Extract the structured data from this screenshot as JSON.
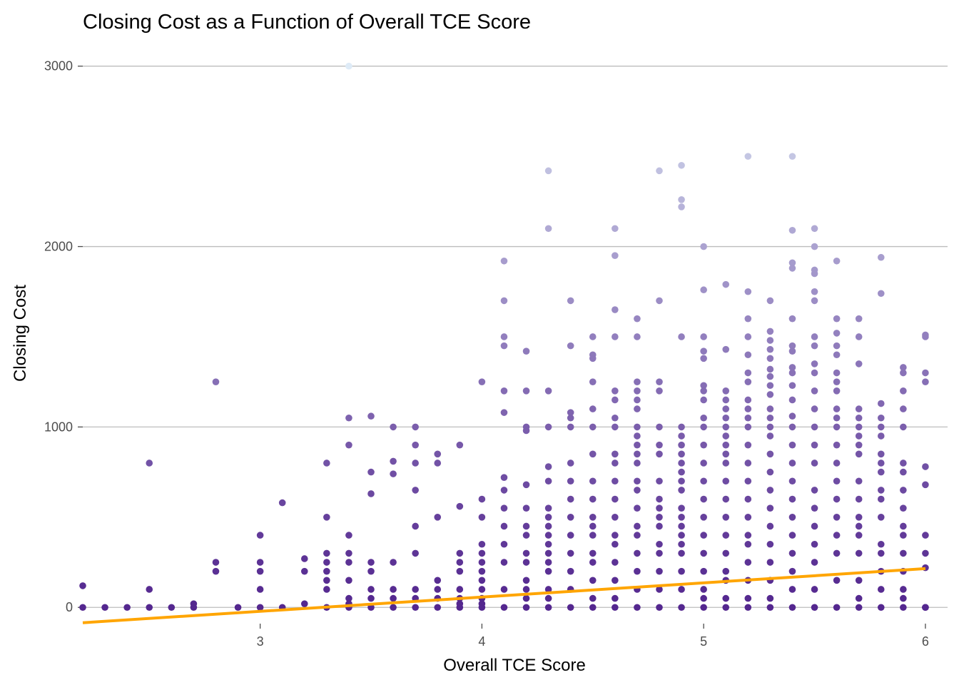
{
  "chart_data": {
    "type": "scatter",
    "title": "Closing Cost as a Function of Overall TCE Score",
    "xlabel": "Overall TCE Score",
    "ylabel": "Closing Cost",
    "xlim": [
      2.2,
      6.1
    ],
    "ylim": [
      -90,
      3070
    ],
    "x_ticks": [
      3,
      4,
      5,
      6
    ],
    "x_tick_labels": [
      "3",
      "4",
      "5",
      "6"
    ],
    "y_ticks": [
      0,
      1000,
      2000,
      3000
    ],
    "y_tick_labels": [
      "0",
      "1000",
      "2000",
      "3000"
    ],
    "grid": "horizontal",
    "point_color_scale": {
      "low": "#54278f",
      "high": "#deebf7",
      "min_value": 0,
      "max_value": 3000
    },
    "trend_line": {
      "color": "#ffa500",
      "x": [
        2.2,
        6.0
      ],
      "y": [
        -85,
        215
      ]
    },
    "points": {
      "x": [
        2.2,
        2.2,
        2.3,
        2.4,
        2.5,
        2.5,
        2.5,
        2.6,
        2.7,
        2.7,
        2.8,
        2.8,
        2.8,
        2.9,
        3.0,
        3.0,
        3.0,
        3.0,
        3.0,
        3.1,
        3.1,
        3.2,
        3.2,
        3.2,
        3.3,
        3.3,
        3.3,
        3.3,
        3.3,
        3.3,
        3.3,
        3.3,
        3.4,
        3.4,
        3.4,
        3.4,
        3.4,
        3.4,
        3.4,
        3.4,
        3.4,
        3.4,
        3.5,
        3.5,
        3.5,
        3.5,
        3.5,
        3.5,
        3.5,
        3.5,
        3.6,
        3.6,
        3.6,
        3.6,
        3.6,
        3.6,
        3.6,
        3.7,
        3.7,
        3.7,
        3.7,
        3.7,
        3.7,
        3.7,
        3.7,
        3.7,
        3.8,
        3.8,
        3.8,
        3.8,
        3.8,
        3.8,
        3.8,
        3.9,
        3.9,
        3.9,
        3.9,
        3.9,
        3.9,
        3.9,
        3.9,
        3.9,
        4.0,
        4.0,
        4.0,
        4.0,
        4.0,
        4.0,
        4.0,
        4.0,
        4.0,
        4.0,
        4.0,
        4.0,
        4.1,
        4.1,
        4.1,
        4.1,
        4.1,
        4.1,
        4.1,
        4.1,
        4.1,
        4.1,
        4.1,
        4.1,
        4.1,
        4.1,
        4.2,
        4.2,
        4.2,
        4.2,
        4.2,
        4.2,
        4.2,
        4.2,
        4.2,
        4.2,
        4.2,
        4.2,
        4.2,
        4.2,
        4.3,
        4.3,
        4.3,
        4.3,
        4.3,
        4.3,
        4.3,
        4.3,
        4.3,
        4.3,
        4.3,
        4.3,
        4.3,
        4.3,
        4.3,
        4.3,
        4.3,
        4.4,
        4.4,
        4.4,
        4.4,
        4.4,
        4.4,
        4.4,
        4.4,
        4.4,
        4.4,
        4.4,
        4.4,
        4.4,
        4.4,
        4.5,
        4.5,
        4.5,
        4.5,
        4.5,
        4.5,
        4.5,
        4.5,
        4.5,
        4.5,
        4.5,
        4.5,
        4.5,
        4.5,
        4.5,
        4.5,
        4.5,
        4.6,
        4.6,
        4.6,
        4.6,
        4.6,
        4.6,
        4.6,
        4.6,
        4.6,
        4.6,
        4.6,
        4.6,
        4.6,
        4.6,
        4.6,
        4.6,
        4.6,
        4.6,
        4.6,
        4.7,
        4.7,
        4.7,
        4.7,
        4.7,
        4.7,
        4.7,
        4.7,
        4.7,
        4.7,
        4.7,
        4.7,
        4.7,
        4.7,
        4.7,
        4.7,
        4.7,
        4.7,
        4.7,
        4.7,
        4.8,
        4.8,
        4.8,
        4.8,
        4.8,
        4.8,
        4.8,
        4.8,
        4.8,
        4.8,
        4.8,
        4.8,
        4.8,
        4.8,
        4.8,
        4.8,
        4.8,
        4.9,
        4.9,
        4.9,
        4.9,
        4.9,
        4.9,
        4.9,
        4.9,
        4.9,
        4.9,
        4.9,
        4.9,
        4.9,
        4.9,
        4.9,
        4.9,
        4.9,
        4.9,
        4.9,
        4.9,
        4.9,
        5.0,
        5.0,
        5.0,
        5.0,
        5.0,
        5.0,
        5.0,
        5.0,
        5.0,
        5.0,
        5.0,
        5.0,
        5.0,
        5.0,
        5.0,
        5.0,
        5.0,
        5.0,
        5.0,
        5.0,
        5.0,
        5.1,
        5.1,
        5.1,
        5.1,
        5.1,
        5.1,
        5.1,
        5.1,
        5.1,
        5.1,
        5.1,
        5.1,
        5.1,
        5.1,
        5.1,
        5.1,
        5.1,
        5.1,
        5.1,
        5.1,
        5.2,
        5.2,
        5.2,
        5.2,
        5.2,
        5.2,
        5.2,
        5.2,
        5.2,
        5.2,
        5.2,
        5.2,
        5.2,
        5.2,
        5.2,
        5.2,
        5.2,
        5.2,
        5.2,
        5.2,
        5.2,
        5.2,
        5.3,
        5.3,
        5.3,
        5.3,
        5.3,
        5.3,
        5.3,
        5.3,
        5.3,
        5.3,
        5.3,
        5.3,
        5.3,
        5.3,
        5.3,
        5.3,
        5.3,
        5.3,
        5.3,
        5.3,
        5.3,
        5.3,
        5.3,
        5.4,
        5.4,
        5.4,
        5.4,
        5.4,
        5.4,
        5.4,
        5.4,
        5.4,
        5.4,
        5.4,
        5.4,
        5.4,
        5.4,
        5.4,
        5.4,
        5.4,
        5.4,
        5.4,
        5.4,
        5.4,
        5.4,
        5.4,
        5.5,
        5.5,
        5.5,
        5.5,
        5.5,
        5.5,
        5.5,
        5.5,
        5.5,
        5.5,
        5.5,
        5.5,
        5.5,
        5.5,
        5.5,
        5.5,
        5.5,
        5.5,
        5.5,
        5.5,
        5.5,
        5.5,
        5.6,
        5.6,
        5.6,
        5.6,
        5.6,
        5.6,
        5.6,
        5.6,
        5.6,
        5.6,
        5.6,
        5.6,
        5.6,
        5.6,
        5.6,
        5.6,
        5.6,
        5.6,
        5.6,
        5.6,
        5.7,
        5.7,
        5.7,
        5.7,
        5.7,
        5.7,
        5.7,
        5.7,
        5.7,
        5.7,
        5.7,
        5.7,
        5.7,
        5.7,
        5.7,
        5.7,
        5.7,
        5.7,
        5.8,
        5.8,
        5.8,
        5.8,
        5.8,
        5.8,
        5.8,
        5.8,
        5.8,
        5.8,
        5.8,
        5.8,
        5.8,
        5.8,
        5.8,
        5.8,
        5.8,
        5.9,
        5.9,
        5.9,
        5.9,
        5.9,
        5.9,
        5.9,
        5.9,
        5.9,
        5.9,
        5.9,
        5.9,
        5.9,
        5.9,
        5.9,
        5.9,
        6.0,
        6.0,
        6.0,
        6.0,
        6.0,
        6.0,
        6.0,
        6.0,
        6.0,
        6.0,
        6.0,
        6.0
      ],
      "y": [
        120,
        0,
        0,
        0,
        800,
        100,
        0,
        0,
        20,
        0,
        1250,
        250,
        200,
        0,
        400,
        250,
        200,
        100,
        0,
        580,
        0,
        270,
        200,
        20,
        800,
        500,
        300,
        250,
        200,
        150,
        100,
        0,
        3000,
        1050,
        900,
        400,
        300,
        250,
        150,
        50,
        20,
        0,
        1060,
        750,
        630,
        250,
        200,
        100,
        50,
        0,
        1000,
        810,
        740,
        250,
        100,
        50,
        0,
        1000,
        900,
        800,
        650,
        450,
        300,
        100,
        50,
        0,
        850,
        800,
        500,
        150,
        100,
        50,
        0,
        900,
        560,
        300,
        250,
        200,
        100,
        50,
        20,
        0,
        1250,
        600,
        500,
        350,
        300,
        250,
        200,
        150,
        100,
        50,
        20,
        0,
        1920,
        1700,
        1500,
        1450,
        1200,
        1080,
        720,
        650,
        550,
        450,
        350,
        250,
        100,
        0,
        1420,
        1200,
        1000,
        980,
        680,
        550,
        450,
        400,
        300,
        250,
        150,
        100,
        50,
        0,
        2420,
        2100,
        1200,
        1000,
        780,
        700,
        550,
        500,
        450,
        400,
        350,
        300,
        250,
        200,
        100,
        50,
        0,
        1700,
        1450,
        1080,
        1050,
        1000,
        800,
        700,
        600,
        500,
        400,
        300,
        200,
        100,
        0,
        1500,
        1400,
        1380,
        1250,
        1100,
        1000,
        850,
        700,
        600,
        500,
        450,
        400,
        300,
        250,
        150,
        50,
        0,
        2100,
        1950,
        1650,
        1500,
        1200,
        1150,
        1050,
        1000,
        850,
        800,
        700,
        600,
        500,
        400,
        350,
        250,
        150,
        50,
        0,
        1600,
        1500,
        1250,
        1200,
        1150,
        1100,
        1000,
        950,
        900,
        850,
        800,
        700,
        650,
        550,
        450,
        400,
        300,
        200,
        100,
        0,
        2420,
        1700,
        1250,
        1200,
        1000,
        900,
        850,
        700,
        600,
        550,
        500,
        450,
        350,
        300,
        200,
        100,
        0,
        2450,
        2260,
        2220,
        1500,
        1000,
        950,
        900,
        850,
        800,
        750,
        700,
        650,
        550,
        500,
        450,
        400,
        350,
        300,
        200,
        100,
        0,
        2000,
        1760,
        1500,
        1420,
        1380,
        1230,
        1200,
        1150,
        1050,
        1000,
        900,
        800,
        700,
        600,
        500,
        400,
        300,
        200,
        100,
        50,
        0,
        1790,
        1430,
        1200,
        1150,
        1100,
        1050,
        1000,
        950,
        900,
        850,
        800,
        700,
        600,
        500,
        400,
        300,
        200,
        150,
        50,
        0,
        2500,
        1750,
        1600,
        1500,
        1400,
        1300,
        1250,
        1150,
        1100,
        1050,
        1000,
        900,
        800,
        700,
        600,
        500,
        400,
        350,
        250,
        150,
        50,
        0,
        1700,
        1530,
        1480,
        1430,
        1380,
        1320,
        1280,
        1230,
        1180,
        1100,
        1050,
        1000,
        950,
        850,
        750,
        650,
        550,
        450,
        350,
        250,
        150,
        50,
        0,
        2500,
        2090,
        1910,
        1880,
        1600,
        1450,
        1420,
        1330,
        1300,
        1230,
        1150,
        1060,
        1000,
        900,
        800,
        700,
        600,
        500,
        400,
        300,
        200,
        100,
        0,
        2100,
        2000,
        1870,
        1850,
        1750,
        1700,
        1500,
        1450,
        1350,
        1300,
        1200,
        1100,
        1000,
        900,
        800,
        650,
        550,
        450,
        350,
        250,
        100,
        0,
        1920,
        1600,
        1520,
        1450,
        1400,
        1300,
        1250,
        1200,
        1100,
        1050,
        1000,
        900,
        800,
        700,
        600,
        500,
        400,
        300,
        150,
        0,
        1600,
        1500,
        1350,
        1100,
        1050,
        1000,
        950,
        900,
        850,
        700,
        600,
        500,
        450,
        400,
        300,
        150,
        50,
        0,
        1940,
        1740,
        1130,
        1050,
        1000,
        950,
        850,
        800,
        750,
        650,
        600,
        500,
        350,
        300,
        200,
        100,
        0,
        1330,
        1300,
        1200,
        1100,
        1000,
        800,
        750,
        650,
        550,
        450,
        400,
        300,
        200,
        100,
        50,
        0,
        1510,
        1500,
        1300,
        1250,
        780,
        680,
        400,
        300,
        220,
        0,
        0,
        0
      ]
    }
  }
}
